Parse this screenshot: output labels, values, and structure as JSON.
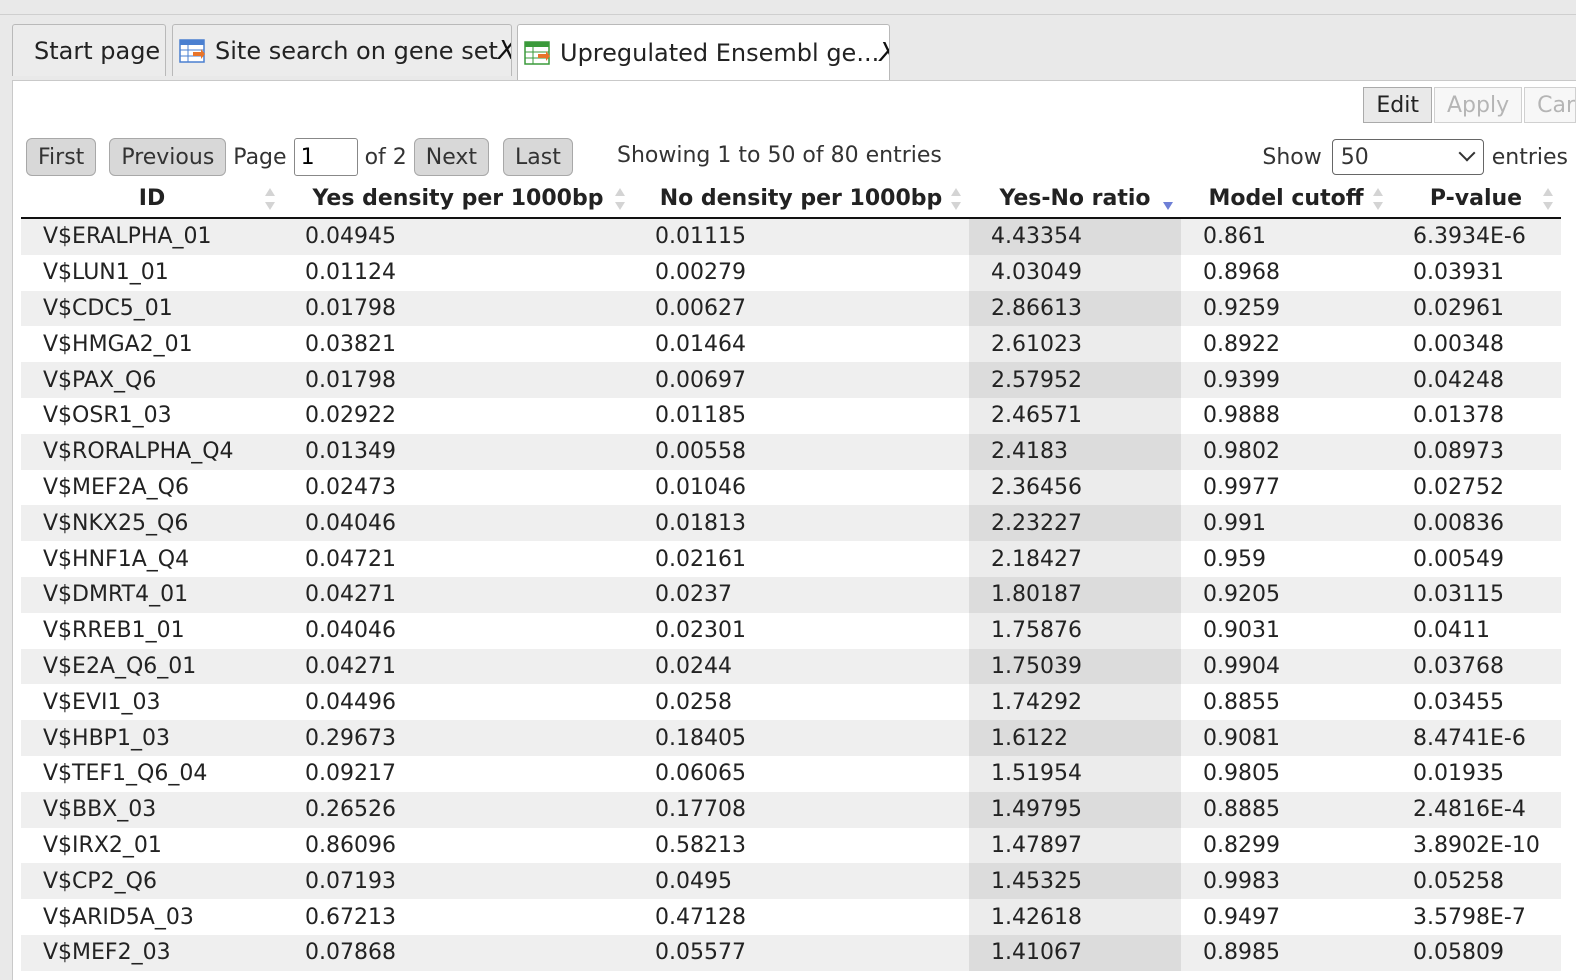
{
  "tabs": [
    {
      "label": "Start page",
      "icon": "",
      "closable": false,
      "active": false
    },
    {
      "label": "Site search on gene set",
      "icon": "table-icon",
      "closable": true,
      "active": false
    },
    {
      "label": "Upregulated Ensembl ge...",
      "icon": "table-icon",
      "closable": true,
      "active": true
    }
  ],
  "tab_close_glyph": "X",
  "toolbar": {
    "edit_label": "Edit",
    "apply_label": "Apply",
    "cancel_label": "Car"
  },
  "pager": {
    "first_label": "First",
    "previous_label": "Previous",
    "page_label": "Page",
    "page_value": "1",
    "of_label": "of 2",
    "next_label": "Next",
    "last_label": "Last"
  },
  "showing_text": "Showing 1 to 50 of 80 entries",
  "show_label": "Show",
  "show_value": "50",
  "entries_label": "entries",
  "columns": [
    "ID",
    "Yes density per 1000bp",
    "No density per 1000bp",
    "Yes-No ratio",
    "Model cutoff",
    "P-value"
  ],
  "rows": [
    [
      "V$ERALPHA_01",
      "0.04945",
      "0.01115",
      "4.43354",
      "0.861",
      "6.3934E-6"
    ],
    [
      "V$LUN1_01",
      "0.01124",
      "0.00279",
      "4.03049",
      "0.8968",
      "0.03931"
    ],
    [
      "V$CDC5_01",
      "0.01798",
      "0.00627",
      "2.86613",
      "0.9259",
      "0.02961"
    ],
    [
      "V$HMGA2_01",
      "0.03821",
      "0.01464",
      "2.61023",
      "0.8922",
      "0.00348"
    ],
    [
      "V$PAX_Q6",
      "0.01798",
      "0.00697",
      "2.57952",
      "0.9399",
      "0.04248"
    ],
    [
      "V$OSR1_03",
      "0.02922",
      "0.01185",
      "2.46571",
      "0.9888",
      "0.01378"
    ],
    [
      "V$RORALPHA_Q4",
      "0.01349",
      "0.00558",
      "2.4183",
      "0.9802",
      "0.08973"
    ],
    [
      "V$MEF2A_Q6",
      "0.02473",
      "0.01046",
      "2.36456",
      "0.9977",
      "0.02752"
    ],
    [
      "V$NKX25_Q6",
      "0.04046",
      "0.01813",
      "2.23227",
      "0.991",
      "0.00836"
    ],
    [
      "V$HNF1A_Q4",
      "0.04721",
      "0.02161",
      "2.18427",
      "0.959",
      "0.00549"
    ],
    [
      "V$DMRT4_01",
      "0.04271",
      "0.0237",
      "1.80187",
      "0.9205",
      "0.03115"
    ],
    [
      "V$RREB1_01",
      "0.04046",
      "0.02301",
      "1.75876",
      "0.9031",
      "0.0411"
    ],
    [
      "V$E2A_Q6_01",
      "0.04271",
      "0.0244",
      "1.75039",
      "0.9904",
      "0.03768"
    ],
    [
      "V$EVI1_03",
      "0.04496",
      "0.0258",
      "1.74292",
      "0.8855",
      "0.03455"
    ],
    [
      "V$HBP1_03",
      "0.29673",
      "0.18405",
      "1.6122",
      "0.9081",
      "8.4741E-6"
    ],
    [
      "V$TEF1_Q6_04",
      "0.09217",
      "0.06065",
      "1.51954",
      "0.9805",
      "0.01935"
    ],
    [
      "V$BBX_03",
      "0.26526",
      "0.17708",
      "1.49795",
      "0.8885",
      "2.4816E-4"
    ],
    [
      "V$IRX2_01",
      "0.86096",
      "0.58213",
      "1.47897",
      "0.8299",
      "3.8902E-10"
    ],
    [
      "V$CP2_Q6",
      "0.07193",
      "0.0495",
      "1.45325",
      "0.9983",
      "0.05258"
    ],
    [
      "V$ARID5A_03",
      "0.67213",
      "0.47128",
      "1.42618",
      "0.9497",
      "3.5798E-7"
    ],
    [
      "V$MEF2_03",
      "0.07868",
      "0.05577",
      "1.41067",
      "0.8985",
      "0.05809"
    ]
  ]
}
